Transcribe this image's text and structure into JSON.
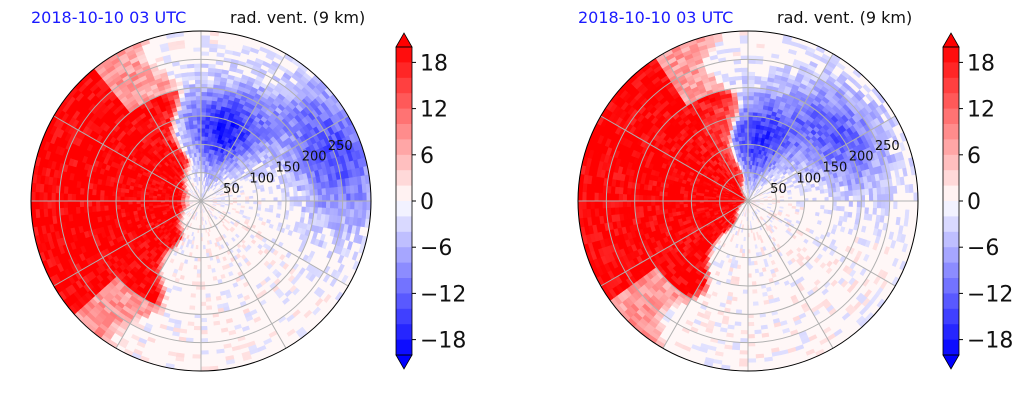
{
  "chart_data": [
    {
      "type": "polar-filled-contour",
      "title_left": "2018-10-10 03 UTC",
      "title_right": "rad. vent. (9 km)",
      "radial_tick_labels": [
        "50",
        "100",
        "150",
        "200",
        "250"
      ],
      "radial_ticks": [
        50,
        100,
        150,
        200,
        250
      ],
      "rmax": 300,
      "angular_gridline_step_deg": 30,
      "colorbar": {
        "ticks": [
          18,
          12,
          6,
          0,
          -6,
          -12,
          -18
        ],
        "tick_labels": [
          "18",
          "12",
          "6",
          "0",
          "−6",
          "−12",
          "−18"
        ],
        "vmin": -20,
        "vmax": 20,
        "colormap": "bwr",
        "extend": "both"
      },
      "features": [
        {
          "kind": "positive-sector",
          "theta_range_deg": [
            110,
            240
          ],
          "r_range": [
            40,
            300
          ],
          "value": 20
        },
        {
          "kind": "negative-cell",
          "theta_deg": 72,
          "r": 130,
          "value": -18
        },
        {
          "kind": "negative-cell",
          "theta_deg": 20,
          "r": 250,
          "value": -14
        }
      ]
    },
    {
      "type": "polar-filled-contour",
      "title_left": "2018-10-10 03 UTC",
      "title_right": "rad. vent. (9 km)",
      "radial_tick_labels": [
        "50",
        "100",
        "150",
        "200",
        "250"
      ],
      "radial_ticks": [
        50,
        100,
        150,
        200,
        250
      ],
      "rmax": 300,
      "angular_gridline_step_deg": 30,
      "colorbar": {
        "ticks": [
          18,
          12,
          6,
          0,
          -6,
          -12,
          -18
        ],
        "tick_labels": [
          "18",
          "12",
          "6",
          "0",
          "−6",
          "−12",
          "−18"
        ],
        "vmin": -20,
        "vmax": 20,
        "colormap": "bwr",
        "extend": "both"
      },
      "features": [
        {
          "kind": "positive-sector",
          "theta_range_deg": [
            105,
            235
          ],
          "r_range": [
            10,
            300
          ],
          "value": 20
        },
        {
          "kind": "negative-cell",
          "theta_deg": 80,
          "r": 110,
          "value": -16
        },
        {
          "kind": "negative-cell",
          "theta_deg": 35,
          "r": 200,
          "value": -12
        }
      ]
    }
  ],
  "colors": {
    "positive": "#ff0000",
    "negative": "#0000ff",
    "title_left": "#1a1aff",
    "grid": "#b0b0b0"
  }
}
